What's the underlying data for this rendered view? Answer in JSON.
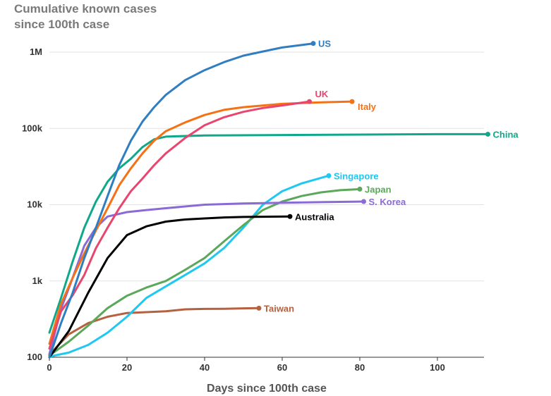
{
  "chart_data": {
    "type": "line",
    "title": [
      "Cumulative known cases",
      "since 100th case"
    ],
    "xlabel": "Days since 100th case",
    "ylabel": "",
    "scale_y": "log",
    "xlim": [
      0,
      112
    ],
    "ylim": [
      100,
      1300000
    ],
    "grid": true,
    "y_ticks": [
      {
        "value": 100,
        "label": "100"
      },
      {
        "value": 1000,
        "label": "1k"
      },
      {
        "value": 10000,
        "label": "10k"
      },
      {
        "value": 100000,
        "label": "100k"
      },
      {
        "value": 1000000,
        "label": "1M"
      }
    ],
    "x_ticks": [
      {
        "value": 0,
        "label": "0"
      },
      {
        "value": 20,
        "label": "20"
      },
      {
        "value": 40,
        "label": "40"
      },
      {
        "value": 60,
        "label": "60"
      },
      {
        "value": 80,
        "label": "80"
      },
      {
        "value": 100,
        "label": "100"
      }
    ],
    "series": [
      {
        "name": "Taiwan",
        "color": "#b5603f",
        "label_pos": "right",
        "x": [
          0,
          5,
          10,
          15,
          20,
          25,
          30,
          35,
          40,
          45,
          50,
          54
        ],
        "y": [
          108,
          200,
          280,
          340,
          380,
          390,
          400,
          425,
          430,
          432,
          438,
          440
        ]
      },
      {
        "name": "Singapore",
        "color": "#1ec8f0",
        "label_pos": "right",
        "x": [
          0,
          5,
          10,
          15,
          20,
          25,
          30,
          35,
          40,
          45,
          50,
          55,
          60,
          65,
          72
        ],
        "y": [
          102,
          115,
          145,
          210,
          340,
          600,
          850,
          1200,
          1700,
          2700,
          5000,
          10000,
          15000,
          19000,
          24000
        ]
      },
      {
        "name": "Japan",
        "color": "#5ba85a",
        "label_pos": "right",
        "x": [
          0,
          5,
          10,
          15,
          20,
          25,
          30,
          35,
          40,
          45,
          50,
          55,
          60,
          65,
          70,
          75,
          80
        ],
        "y": [
          105,
          160,
          260,
          440,
          640,
          820,
          1000,
          1400,
          2000,
          3300,
          5400,
          8500,
          11000,
          13000,
          14500,
          15500,
          16000
        ]
      },
      {
        "name": "Australia",
        "color": "#000000",
        "label_pos": "right",
        "x": [
          0,
          5,
          10,
          15,
          20,
          25,
          30,
          35,
          40,
          45,
          50,
          55,
          62
        ],
        "y": [
          100,
          220,
          700,
          2000,
          4000,
          5200,
          6000,
          6400,
          6600,
          6800,
          6900,
          6950,
          7000
        ]
      },
      {
        "name": "S. Korea",
        "color": "#8a6bd6",
        "label_pos": "right",
        "x": [
          0,
          3,
          6,
          9,
          12,
          15,
          20,
          25,
          30,
          40,
          50,
          60,
          70,
          81
        ],
        "y": [
          110,
          430,
          1100,
          2900,
          5000,
          7000,
          8000,
          8500,
          9000,
          10000,
          10400,
          10600,
          10800,
          11000
        ]
      },
      {
        "name": "China",
        "color": "#0fa88a",
        "label_pos": "right",
        "x": [
          0,
          3,
          6,
          9,
          12,
          15,
          18,
          21,
          24,
          27,
          30,
          40,
          60,
          80,
          100,
          113
        ],
        "y": [
          210,
          600,
          1800,
          5000,
          11000,
          20000,
          30000,
          40000,
          57000,
          72000,
          78000,
          81000,
          82000,
          83000,
          84000,
          84000
        ]
      },
      {
        "name": "Italy",
        "color": "#f47216",
        "label_pos": "right-below",
        "x": [
          0,
          3,
          6,
          9,
          12,
          15,
          18,
          21,
          24,
          27,
          30,
          35,
          40,
          45,
          50,
          55,
          60,
          65,
          70,
          78
        ],
        "y": [
          150,
          500,
          1100,
          2300,
          4600,
          9000,
          18000,
          30000,
          47000,
          69000,
          92000,
          120000,
          150000,
          175000,
          190000,
          200000,
          210000,
          215000,
          220000,
          225000
        ]
      },
      {
        "name": "UK",
        "color": "#e8466e",
        "label_pos": "above",
        "x": [
          0,
          3,
          6,
          9,
          12,
          15,
          18,
          21,
          24,
          27,
          30,
          35,
          40,
          45,
          50,
          55,
          60,
          67
        ],
        "y": [
          130,
          400,
          650,
          1200,
          2700,
          5000,
          9000,
          15000,
          22000,
          33000,
          47000,
          75000,
          110000,
          140000,
          165000,
          185000,
          200000,
          225000
        ]
      },
      {
        "name": "US",
        "color": "#2f7ec2",
        "label_pos": "right",
        "x": [
          0,
          3,
          6,
          9,
          12,
          15,
          18,
          21,
          24,
          27,
          30,
          35,
          40,
          45,
          50,
          55,
          60,
          68
        ],
        "y": [
          100,
          280,
          700,
          2000,
          5000,
          13000,
          33000,
          69000,
          123000,
          190000,
          275000,
          430000,
          580000,
          740000,
          900000,
          1020000,
          1150000,
          1300000
        ]
      }
    ]
  }
}
